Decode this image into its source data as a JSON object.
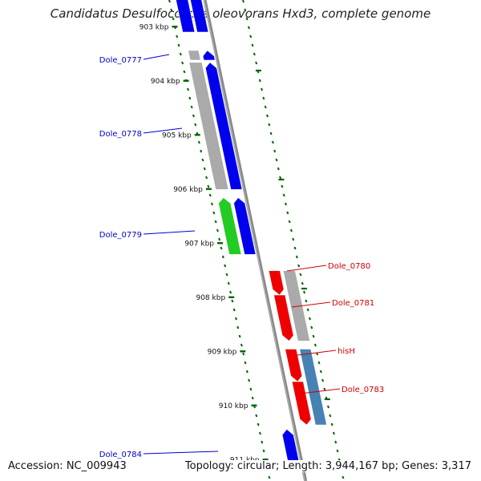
{
  "title": "Candidatus Desulfococcus oleovorans Hxd3, complete genome",
  "footer": {
    "accession": "Accession: NC_009943",
    "stats": "Topology: circular; Length: 3,944,167 bp; Genes: 3,317"
  },
  "colors": {
    "forward": "#0000ee",
    "reverse": "#ee0000",
    "rna": "#22cc22",
    "pseudo": "#aaaaaa",
    "other": "#4682b4",
    "dots": "#006600",
    "backbone": "#888888"
  },
  "ticks": [
    "903 kbp",
    "904 kbp",
    "905 kbp",
    "906 kbp",
    "907 kbp",
    "908 kbp",
    "909 kbp",
    "910 kbp",
    "911 kbp"
  ],
  "genes_forward": [
    {
      "label": "Dole_0777",
      "start_kbp": 903.38,
      "end_kbp": 903.56
    },
    {
      "label": "Dole_0778",
      "start_kbp": 903.6,
      "end_kbp": 905.95
    },
    {
      "label": "Dole_0779",
      "start_kbp": 906.1,
      "end_kbp": 907.15
    },
    {
      "label": "Dole_0784",
      "start_kbp": 910.38,
      "end_kbp": 911.0
    }
  ],
  "genes_reverse": [
    {
      "label": "Dole_0780",
      "start_kbp": 907.45,
      "end_kbp": 907.9
    },
    {
      "label": "Dole_0781",
      "start_kbp": 907.9,
      "end_kbp": 908.75
    },
    {
      "label": "hisH",
      "start_kbp": 908.9,
      "end_kbp": 909.5
    },
    {
      "label": "Dole_0783",
      "start_kbp": 909.5,
      "end_kbp": 910.3
    }
  ]
}
